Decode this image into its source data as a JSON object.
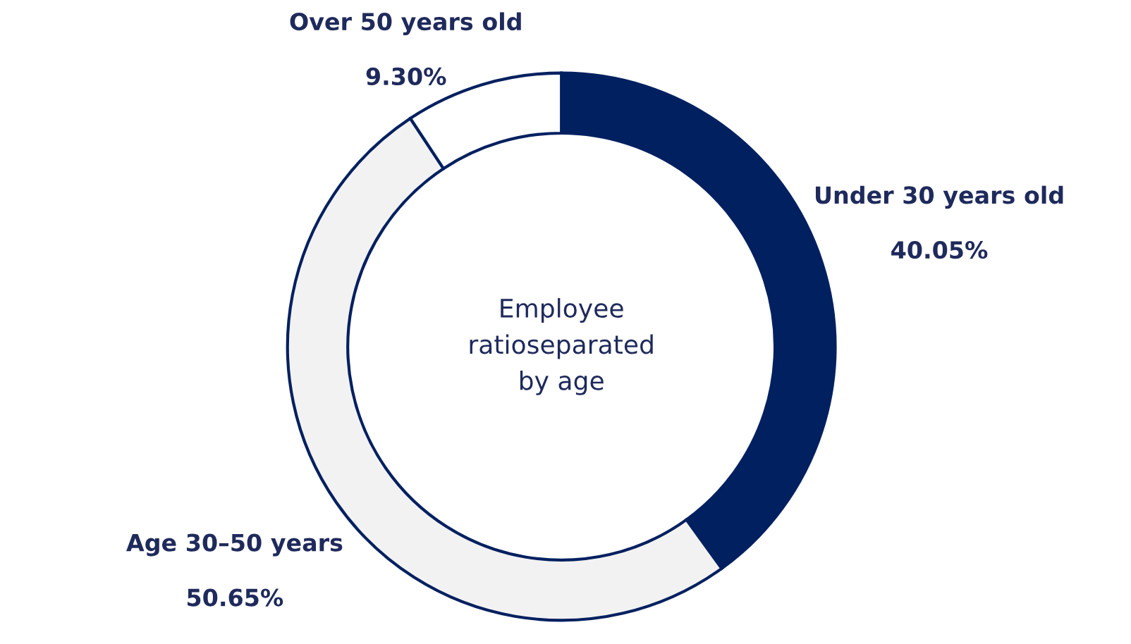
{
  "chart_data": {
    "type": "donut",
    "title": "Employee\nratioseparated\nby age",
    "categories": [
      "Under 30 years old",
      "Age 30–50 years",
      "Over 50 years old"
    ],
    "values": [
      40.05,
      50.65,
      9.3
    ],
    "colors": [
      "#002060",
      "#f2f2f2",
      "#ffffff"
    ],
    "value_labels": [
      "40.05%",
      "50.65%",
      "9.30%"
    ]
  }
}
